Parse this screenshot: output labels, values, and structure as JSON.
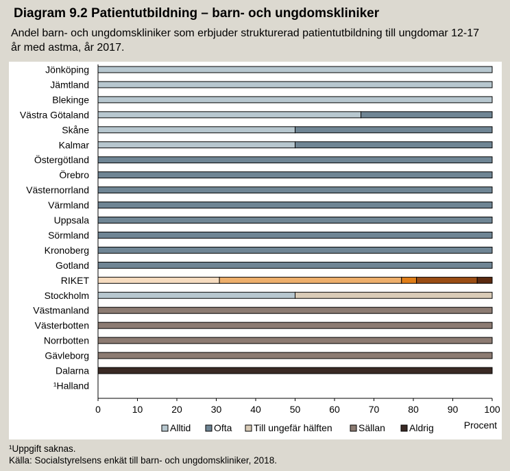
{
  "title": "Diagram 9.2 Patientutbildning – barn- och ungdomskliniker",
  "subtitle": "Andel barn- och ungdomskliniker som erbjuder strukturerad patientutbildning till ungdomar 12-17 år med astma, år 2017.",
  "footnote": "¹Uppgift saknas.",
  "source": "Källa: Socialstyrelsens enkät till barn- och ungdomskliniker, 2018.",
  "chart_data": {
    "type": "bar",
    "orientation": "horizontal",
    "stacked": true,
    "xlabel": "Procent",
    "xlim": [
      0,
      100
    ],
    "xticks": [
      0,
      10,
      20,
      30,
      40,
      50,
      60,
      70,
      80,
      90,
      100
    ],
    "grid": false,
    "legend_position": "bottom",
    "categories": [
      "Jönköping",
      "Jämtland",
      "Blekinge",
      "Västra Götaland",
      "Skåne",
      "Kalmar",
      "Östergötland",
      "Örebro",
      "Västernorrland",
      "Värmland",
      "Uppsala",
      "Sörmland",
      "Kronoberg",
      "Gotland",
      "RIKET",
      "Stockholm",
      "Västmanland",
      "Västerbotten",
      "Norrbotten",
      "Gävleborg",
      "Dalarna",
      "¹Halland"
    ],
    "series": [
      {
        "name": "Alltid",
        "color": "#b7c7cf",
        "values": [
          100,
          100,
          100,
          66.7,
          50,
          50,
          0,
          0,
          0,
          0,
          0,
          0,
          0,
          0,
          0,
          50,
          0,
          0,
          0,
          0,
          0,
          0
        ]
      },
      {
        "name": "Ofta",
        "color": "#6f8594",
        "values": [
          0,
          0,
          0,
          33.3,
          50,
          50,
          100,
          100,
          100,
          100,
          100,
          100,
          100,
          100,
          0,
          0,
          0,
          0,
          0,
          0,
          0,
          0
        ]
      },
      {
        "name": "Till ungefär hälften",
        "color": "#d9cbb7",
        "values": [
          0,
          0,
          0,
          0,
          0,
          0,
          0,
          0,
          0,
          0,
          0,
          0,
          0,
          0,
          0,
          50,
          0,
          0,
          0,
          0,
          0,
          0
        ]
      },
      {
        "name": "Sällan",
        "color": "#8c7b72",
        "values": [
          0,
          0,
          0,
          0,
          0,
          0,
          0,
          0,
          0,
          0,
          0,
          0,
          0,
          0,
          0,
          0,
          100,
          100,
          100,
          100,
          0,
          0
        ]
      },
      {
        "name": "Aldrig",
        "color": "#3a2a25",
        "values": [
          0,
          0,
          0,
          0,
          0,
          0,
          0,
          0,
          0,
          0,
          0,
          0,
          0,
          0,
          0,
          0,
          0,
          0,
          0,
          0,
          100,
          0
        ]
      }
    ],
    "highlight": {
      "category": "RIKET",
      "values": [
        30.8,
        46.2,
        3.8,
        15.4,
        3.8
      ],
      "colors": [
        "#f6dcc0",
        "#eeaf6c",
        "#e07e18",
        "#9a4d14",
        "#5b2a10"
      ]
    }
  }
}
